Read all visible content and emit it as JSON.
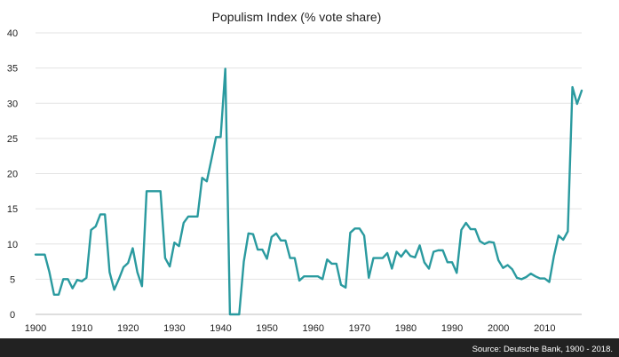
{
  "chart_data": {
    "type": "line",
    "title": "Populism Index (% vote share)",
    "source": "Source: Deutsche Bank, 1900 - 2018.",
    "xlim": [
      1900,
      2018
    ],
    "ylim": [
      0,
      40
    ],
    "x_ticks": [
      "1900",
      "1910",
      "1920",
      "1930",
      "1940",
      "1950",
      "1960",
      "1970",
      "1980",
      "1990",
      "2000",
      "2010"
    ],
    "y_ticks": [
      "0",
      "5",
      "10",
      "15",
      "20",
      "25",
      "30",
      "35",
      "40"
    ],
    "grid": true,
    "legend": "none",
    "colors": {
      "series": "#2a9a9f",
      "footer": "#222222",
      "grid": "#e3e3e3"
    },
    "series": [
      {
        "x": [
          1900,
          1902,
          1903,
          1904,
          1905,
          1906,
          1907,
          1908,
          1909,
          1910,
          1911,
          1912,
          1913,
          1914,
          1915,
          1916,
          1917,
          1918,
          1919,
          1920,
          1921,
          1922,
          1923,
          1924,
          1925,
          1926,
          1927,
          1928,
          1929,
          1930,
          1931,
          1932,
          1933,
          1934,
          1935,
          1936,
          1937,
          1938,
          1939,
          1940,
          1941,
          1942,
          1943,
          1944,
          1945,
          1946,
          1947,
          1948,
          1949,
          1950,
          1951,
          1952,
          1953,
          1954,
          1955,
          1956,
          1957,
          1958,
          1959,
          1960,
          1961,
          1962,
          1963,
          1964,
          1965,
          1966,
          1967,
          1968,
          1969,
          1970,
          1971,
          1972,
          1973,
          1974,
          1975,
          1976,
          1977,
          1978,
          1979,
          1980,
          1981,
          1982,
          1983,
          1984,
          1985,
          1986,
          1987,
          1988,
          1989,
          1990,
          1991,
          1992,
          1993,
          1994,
          1995,
          1996,
          1997,
          1998,
          1999,
          2000,
          2001,
          2002,
          2003,
          2004,
          2005,
          2006,
          2007,
          2008,
          2009,
          2010,
          2011,
          2012,
          2013,
          2014,
          2015,
          2016,
          2017,
          2018
        ],
        "values": [
          8.5,
          8.5,
          6,
          2.8,
          2.8,
          5,
          5,
          3.7,
          4.9,
          4.7,
          5.2,
          12,
          12.5,
          14.2,
          14.2,
          6,
          3.5,
          5,
          6.7,
          7.3,
          9.4,
          6,
          4,
          17.5,
          17.5,
          17.5,
          17.5,
          8,
          6.8,
          10.2,
          9.7,
          13,
          13.9,
          13.9,
          13.9,
          19.4,
          18.9,
          22,
          25.2,
          25.2,
          34.9,
          0,
          0,
          0,
          7.5,
          11.5,
          11.4,
          9.2,
          9.2,
          7.9,
          11,
          11.5,
          10.5,
          10.5,
          8,
          8,
          4.8,
          5.4,
          5.4,
          5.4,
          5.4,
          5,
          7.8,
          7.2,
          7.2,
          4.2,
          3.8,
          11.6,
          12.2,
          12.2,
          11.2,
          5.2,
          8,
          8,
          8,
          8.7,
          6.5,
          8.9,
          8.2,
          9.1,
          8.3,
          8.1,
          9.8,
          7.4,
          6.5,
          8.9,
          9.1,
          9.1,
          7.4,
          7.4,
          5.9,
          12,
          13,
          12.1,
          12.1,
          10.4,
          10,
          10.3,
          10.2,
          7.7,
          6.6,
          7,
          6.4,
          5.2,
          5,
          5.3,
          5.8,
          5.4,
          5.1,
          5.1,
          4.6,
          8.3,
          11.2,
          10.6,
          11.8,
          32.3,
          29.9,
          31.8
        ]
      }
    ]
  }
}
